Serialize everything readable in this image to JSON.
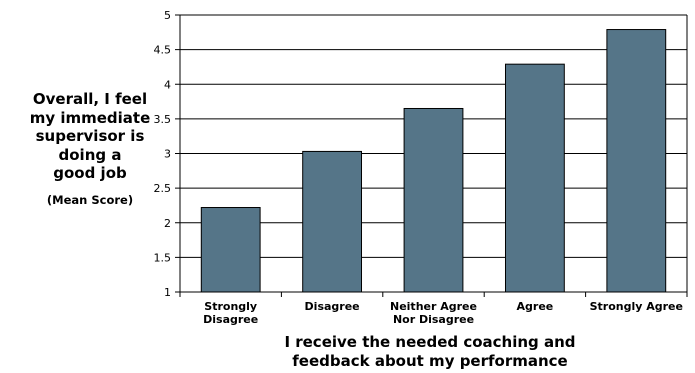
{
  "chart_data": {
    "type": "bar",
    "categories": [
      "Strongly Disagree",
      "Disagree",
      "Neither Agree Nor Disagree",
      "Agree",
      "Strongly Agree"
    ],
    "category_lines": [
      [
        "Strongly",
        "Disagree"
      ],
      [
        "Disagree"
      ],
      [
        "Neither Agree",
        "Nor Disagree"
      ],
      [
        "Agree"
      ],
      [
        "Strongly Agree"
      ]
    ],
    "values": [
      2.22,
      3.03,
      3.65,
      4.29,
      4.79
    ],
    "ylim": [
      1,
      5
    ],
    "yticks": [
      "1",
      "1.5",
      "2",
      "2.5",
      "3",
      "3.5",
      "4",
      "4.5",
      "5"
    ],
    "ylabel_lines": [
      "Overall, I feel",
      "my immediate",
      "supervisor is",
      "doing a",
      "good job"
    ],
    "ylabel_sub": "(Mean Score)",
    "xlabel_lines": [
      "I receive the needed coaching and",
      "feedback about my performance"
    ],
    "grid": true,
    "bar_color": "#557588"
  }
}
